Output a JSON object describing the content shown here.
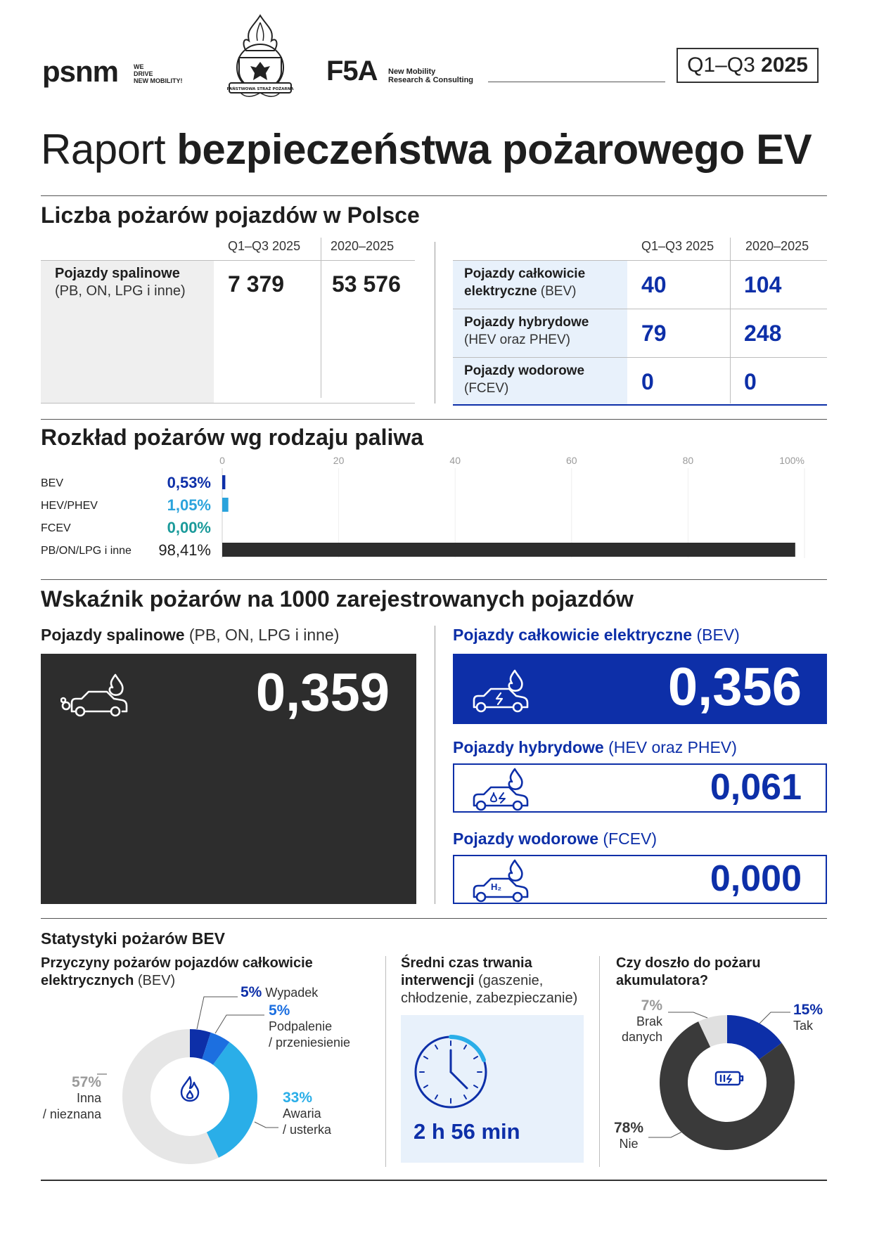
{
  "header": {
    "psnm_logo": "psnm",
    "psnm_tagline": [
      "WE",
      "DRIVE",
      "NEW MOBILITY!"
    ],
    "psp_emblem_text": "PAŃSTWOWA STRAŻ POŻARNA",
    "f5a_logo": "F5A",
    "f5a_tagline": [
      "New Mobility",
      "Research & Consulting"
    ],
    "period_prefix": "Q1–Q3",
    "period_year": "2025"
  },
  "title": {
    "light": "Raport",
    "bold": "bezpieczeństwa pożarowego EV"
  },
  "count_section": {
    "heading": "Liczba pożarów pojazdów w Polsce",
    "col_q": "Q1–Q3 2025",
    "col_total": "2020–2025",
    "combustion": {
      "name": "Pojazdy spalinowe",
      "sub": "(PB, ON, LPG i inne)",
      "q": "7 379",
      "total": "53 576"
    },
    "ev_rows": [
      {
        "name": "Pojazdy całkowicie",
        "name2": "elektryczne",
        "sub": "(BEV)",
        "q": "40",
        "total": "104"
      },
      {
        "name": "Pojazdy hybrydowe",
        "name2": "",
        "sub": "(HEV oraz PHEV)",
        "q": "79",
        "total": "248"
      },
      {
        "name": "Pojazdy wodorowe",
        "name2": "",
        "sub": "(FCEV)",
        "q": "0",
        "total": "0"
      }
    ]
  },
  "fuel_section": {
    "heading": "Rozkład pożarów wg rodzaju paliwa"
  },
  "chart_data": {
    "type": "bar",
    "orientation": "horizontal",
    "categories": [
      "BEV",
      "HEV/PHEV",
      "FCEV",
      "PB/ON/LPG i inne"
    ],
    "values": [
      0.53,
      1.05,
      0.0,
      98.41
    ],
    "value_labels": [
      "0,53%",
      "1,05%",
      "0,00%",
      "98,41%"
    ],
    "colors": [
      "#0d2fa8",
      "#2aa3dc",
      "#1a9a9a",
      "#2d2d2d"
    ],
    "xlim": [
      0,
      100
    ],
    "x_ticks": [
      "0",
      "20",
      "40",
      "60",
      "80",
      "100%"
    ],
    "grid": true
  },
  "rate_section": {
    "heading": "Wskaźnik pożarów na 1000 zarejestrowanych pojazdów",
    "combustion": {
      "name": "Pojazdy spalinowe",
      "sub": "(PB, ON, LPG i inne)",
      "value": "0,359",
      "icon": "combustion-car-icon"
    },
    "bev": {
      "name": "Pojazdy całkowicie elektryczne",
      "sub": "(BEV)",
      "value": "0,356",
      "icon": "electric-car-icon"
    },
    "hybrid": {
      "name": "Pojazdy hybrydowe",
      "sub": "(HEV oraz PHEV)",
      "value": "0,061",
      "icon": "hybrid-car-icon"
    },
    "hydrogen": {
      "name": "Pojazdy wodorowe",
      "sub": "(FCEV)",
      "value": "0,000",
      "icon": "hydrogen-car-icon",
      "badge": "H₂"
    }
  },
  "bev_stats": {
    "heading": "Statystyki pożarów BEV",
    "causes": {
      "title_bold": "Przyczyny pożarów pojazdów całkowicie",
      "title_bold2": "elektrycznych",
      "title_sub": "(BEV)",
      "slices": [
        {
          "pct": "5%",
          "label": "Wypadek",
          "label2": "",
          "value": 5,
          "color": "#0d2fa8"
        },
        {
          "pct": "5%",
          "label": "Podpalenie",
          "label2": "/ przeniesienie",
          "value": 5,
          "color": "#1c6fe0"
        },
        {
          "pct": "33%",
          "label": "Awaria",
          "label2": "/ usterka",
          "value": 33,
          "color": "#2aaee8"
        },
        {
          "pct": "57%",
          "label": "Inna",
          "label2": "/ nieznana",
          "value": 57,
          "color": "#e6e6e6"
        }
      ]
    },
    "duration": {
      "title_bold": "Średni czas trwania",
      "title_bold2": "interwencji",
      "title_sub": "(gaszenie,",
      "title_sub2": "chłodzenie, zabezpieczanie)",
      "value": "2 h 56 min"
    },
    "battery": {
      "title": "Czy doszło do pożaru",
      "title2": "akumulatora?",
      "slices": [
        {
          "pct": "15%",
          "label": "Tak",
          "label2": "",
          "value": 15,
          "color": "#0d2fa8"
        },
        {
          "pct": "78%",
          "label": "Nie",
          "label2": "",
          "value": 78,
          "color": "#3a3a3a"
        },
        {
          "pct": "7%",
          "label": "Brak",
          "label2": "danych",
          "value": 7,
          "color": "#e0e0e0"
        }
      ]
    }
  }
}
